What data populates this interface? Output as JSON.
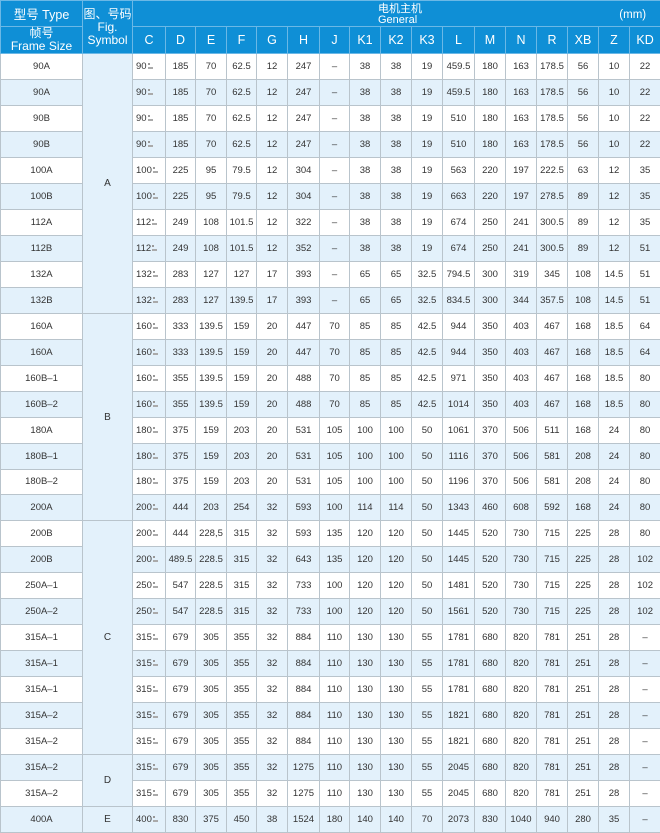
{
  "header": {
    "type_label": "型号 Type",
    "frame_label_cn": "帧号",
    "frame_label_en": "Frame Size",
    "fig_label_cn": "图、号码",
    "fig_label_en1": "Fig.",
    "fig_label_en2": "Symbol",
    "general_cn": "电机主机",
    "general_en": "General",
    "unit": "(mm)",
    "columns": [
      "C",
      "D",
      "E",
      "F",
      "G",
      "H",
      "J",
      "K1",
      "K2",
      "K3",
      "L",
      "M",
      "N",
      "R",
      "XB",
      "Z",
      "KD"
    ]
  },
  "colors": {
    "header_bg": "#0f8fd6",
    "stripe": "#e3f1fb"
  },
  "rows": [
    {
      "type": "90A",
      "fig": "A",
      "v": [
        "90",
        "185",
        "70",
        "62.5",
        "12",
        "247",
        "–",
        "38",
        "38",
        "19",
        "459.5",
        "180",
        "163",
        "178.5",
        "56",
        "10",
        "22"
      ]
    },
    {
      "type": "90A",
      "fig": "A",
      "v": [
        "90",
        "185",
        "70",
        "62.5",
        "12",
        "247",
        "–",
        "38",
        "38",
        "19",
        "459.5",
        "180",
        "163",
        "178.5",
        "56",
        "10",
        "22"
      ]
    },
    {
      "type": "90B",
      "fig": "A",
      "v": [
        "90",
        "185",
        "70",
        "62.5",
        "12",
        "247",
        "–",
        "38",
        "38",
        "19",
        "510",
        "180",
        "163",
        "178.5",
        "56",
        "10",
        "22"
      ]
    },
    {
      "type": "90B",
      "fig": "A",
      "v": [
        "90",
        "185",
        "70",
        "62.5",
        "12",
        "247",
        "–",
        "38",
        "38",
        "19",
        "510",
        "180",
        "163",
        "178.5",
        "56",
        "10",
        "22"
      ]
    },
    {
      "type": "100A",
      "fig": "A",
      "v": [
        "100",
        "225",
        "95",
        "79.5",
        "12",
        "304",
        "–",
        "38",
        "38",
        "19",
        "563",
        "220",
        "197",
        "222.5",
        "63",
        "12",
        "35"
      ]
    },
    {
      "type": "100B",
      "fig": "A",
      "v": [
        "100",
        "225",
        "95",
        "79.5",
        "12",
        "304",
        "–",
        "38",
        "38",
        "19",
        "663",
        "220",
        "197",
        "278.5",
        "89",
        "12",
        "35"
      ]
    },
    {
      "type": "112A",
      "fig": "A",
      "v": [
        "112",
        "249",
        "108",
        "101.5",
        "12",
        "322",
        "–",
        "38",
        "38",
        "19",
        "674",
        "250",
        "241",
        "300.5",
        "89",
        "12",
        "35"
      ]
    },
    {
      "type": "112B",
      "fig": "A",
      "v": [
        "112",
        "249",
        "108",
        "101.5",
        "12",
        "352",
        "–",
        "38",
        "38",
        "19",
        "674",
        "250",
        "241",
        "300.5",
        "89",
        "12",
        "51"
      ]
    },
    {
      "type": "132A",
      "fig": "A",
      "v": [
        "132",
        "283",
        "127",
        "127",
        "17",
        "393",
        "–",
        "65",
        "65",
        "32.5",
        "794.5",
        "300",
        "319",
        "345",
        "108",
        "14.5",
        "51"
      ]
    },
    {
      "type": "132B",
      "fig": "A",
      "v": [
        "132",
        "283",
        "127",
        "139.5",
        "17",
        "393",
        "–",
        "65",
        "65",
        "32.5",
        "834.5",
        "300",
        "344",
        "357.5",
        "108",
        "14.5",
        "51"
      ]
    },
    {
      "type": "160A",
      "fig": "B",
      "v": [
        "160",
        "333",
        "139.5",
        "159",
        "20",
        "447",
        "70",
        "85",
        "85",
        "42.5",
        "944",
        "350",
        "403",
        "467",
        "168",
        "18.5",
        "64"
      ]
    },
    {
      "type": "160A",
      "fig": "B",
      "v": [
        "160",
        "333",
        "139.5",
        "159",
        "20",
        "447",
        "70",
        "85",
        "85",
        "42.5",
        "944",
        "350",
        "403",
        "467",
        "168",
        "18.5",
        "64"
      ]
    },
    {
      "type": "160B–1",
      "fig": "B",
      "v": [
        "160",
        "355",
        "139.5",
        "159",
        "20",
        "488",
        "70",
        "85",
        "85",
        "42.5",
        "971",
        "350",
        "403",
        "467",
        "168",
        "18.5",
        "80"
      ]
    },
    {
      "type": "160B–2",
      "fig": "B",
      "v": [
        "160",
        "355",
        "139.5",
        "159",
        "20",
        "488",
        "70",
        "85",
        "85",
        "42.5",
        "1014",
        "350",
        "403",
        "467",
        "168",
        "18.5",
        "80"
      ]
    },
    {
      "type": "180A",
      "fig": "B",
      "v": [
        "180",
        "375",
        "159",
        "203",
        "20",
        "531",
        "105",
        "100",
        "100",
        "50",
        "1061",
        "370",
        "506",
        "511",
        "168",
        "24",
        "80"
      ]
    },
    {
      "type": "180B–1",
      "fig": "B",
      "v": [
        "180",
        "375",
        "159",
        "203",
        "20",
        "531",
        "105",
        "100",
        "100",
        "50",
        "1116",
        "370",
        "506",
        "581",
        "208",
        "24",
        "80"
      ]
    },
    {
      "type": "180B–2",
      "fig": "B",
      "v": [
        "180",
        "375",
        "159",
        "203",
        "20",
        "531",
        "105",
        "100",
        "100",
        "50",
        "1196",
        "370",
        "506",
        "581",
        "208",
        "24",
        "80"
      ]
    },
    {
      "type": "200A",
      "fig": "B",
      "v": [
        "200",
        "444",
        "203",
        "254",
        "32",
        "593",
        "100",
        "114",
        "114",
        "50",
        "1343",
        "460",
        "608",
        "592",
        "168",
        "24",
        "80"
      ]
    },
    {
      "type": "200B",
      "fig": "C",
      "v": [
        "200",
        "444",
        "228,5",
        "315",
        "32",
        "593",
        "135",
        "120",
        "120",
        "50",
        "1445",
        "520",
        "730",
        "715",
        "225",
        "28",
        "80"
      ]
    },
    {
      "type": "200B",
      "fig": "C",
      "v": [
        "200",
        "489.5",
        "228.5",
        "315",
        "32",
        "643",
        "135",
        "120",
        "120",
        "50",
        "1445",
        "520",
        "730",
        "715",
        "225",
        "28",
        "102"
      ]
    },
    {
      "type": "250A–1",
      "fig": "C",
      "v": [
        "250",
        "547",
        "228.5",
        "315",
        "32",
        "733",
        "100",
        "120",
        "120",
        "50",
        "1481",
        "520",
        "730",
        "715",
        "225",
        "28",
        "102"
      ]
    },
    {
      "type": "250A–2",
      "fig": "C",
      "v": [
        "250",
        "547",
        "228.5",
        "315",
        "32",
        "733",
        "100",
        "120",
        "120",
        "50",
        "1561",
        "520",
        "730",
        "715",
        "225",
        "28",
        "102"
      ]
    },
    {
      "type": "315A–1",
      "fig": "C",
      "v": [
        "315",
        "679",
        "305",
        "355",
        "32",
        "884",
        "110",
        "130",
        "130",
        "55",
        "1781",
        "680",
        "820",
        "781",
        "251",
        "28",
        "–"
      ]
    },
    {
      "type": "315A–1",
      "fig": "C",
      "v": [
        "315",
        "679",
        "305",
        "355",
        "32",
        "884",
        "110",
        "130",
        "130",
        "55",
        "1781",
        "680",
        "820",
        "781",
        "251",
        "28",
        "–"
      ]
    },
    {
      "type": "315A–1",
      "fig": "C",
      "v": [
        "315",
        "679",
        "305",
        "355",
        "32",
        "884",
        "110",
        "130",
        "130",
        "55",
        "1781",
        "680",
        "820",
        "781",
        "251",
        "28",
        "–"
      ]
    },
    {
      "type": "315A–2",
      "fig": "C",
      "v": [
        "315",
        "679",
        "305",
        "355",
        "32",
        "884",
        "110",
        "130",
        "130",
        "55",
        "1821",
        "680",
        "820",
        "781",
        "251",
        "28",
        "–"
      ]
    },
    {
      "type": "315A–2",
      "fig": "C",
      "v": [
        "315",
        "679",
        "305",
        "355",
        "32",
        "884",
        "110",
        "130",
        "130",
        "55",
        "1821",
        "680",
        "820",
        "781",
        "251",
        "28",
        "–"
      ]
    },
    {
      "type": "315A–2",
      "fig": "D",
      "v": [
        "315",
        "679",
        "305",
        "355",
        "32",
        "1275",
        "110",
        "130",
        "130",
        "55",
        "2045",
        "680",
        "820",
        "781",
        "251",
        "28",
        "–"
      ]
    },
    {
      "type": "315A–2",
      "fig": "D",
      "v": [
        "315",
        "679",
        "305",
        "355",
        "32",
        "1275",
        "110",
        "130",
        "130",
        "55",
        "2045",
        "680",
        "820",
        "781",
        "251",
        "28",
        "–"
      ]
    },
    {
      "type": "400A",
      "fig": "E",
      "v": [
        "400",
        "830",
        "375",
        "450",
        "38",
        "1524",
        "180",
        "140",
        "140",
        "70",
        "2073",
        "830",
        "1040",
        "940",
        "280",
        "35",
        "–"
      ]
    }
  ]
}
